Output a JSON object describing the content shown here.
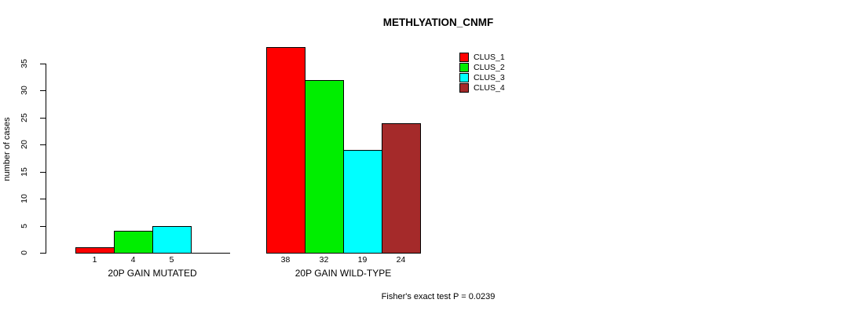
{
  "page": {
    "background": "#ffffff"
  },
  "chart_data": {
    "type": "bar",
    "title": "METHLYATION_CNMF",
    "ylabel": "number of cases",
    "xlabel": "",
    "ylim": [
      0,
      38
    ],
    "yticks": [
      0,
      5,
      10,
      15,
      20,
      25,
      30,
      35
    ],
    "grid": false,
    "legend_position": "top-right",
    "categories": [
      "20P GAIN MUTATED",
      "20P GAIN WILD-TYPE"
    ],
    "series": [
      {
        "name": "CLUS_1",
        "color": "#ff0000",
        "values": [
          1,
          38
        ]
      },
      {
        "name": "CLUS_2",
        "color": "#00ee00",
        "values": [
          4,
          32
        ]
      },
      {
        "name": "CLUS_3",
        "color": "#00ffff",
        "values": [
          5,
          19
        ]
      },
      {
        "name": "CLUS_4",
        "color": "#a52a2a",
        "values": [
          0,
          24
        ]
      }
    ],
    "bar_value_labels_shown": true,
    "footnote": "Fisher's exact test P = 0.0239",
    "axis_color": "#000000"
  }
}
